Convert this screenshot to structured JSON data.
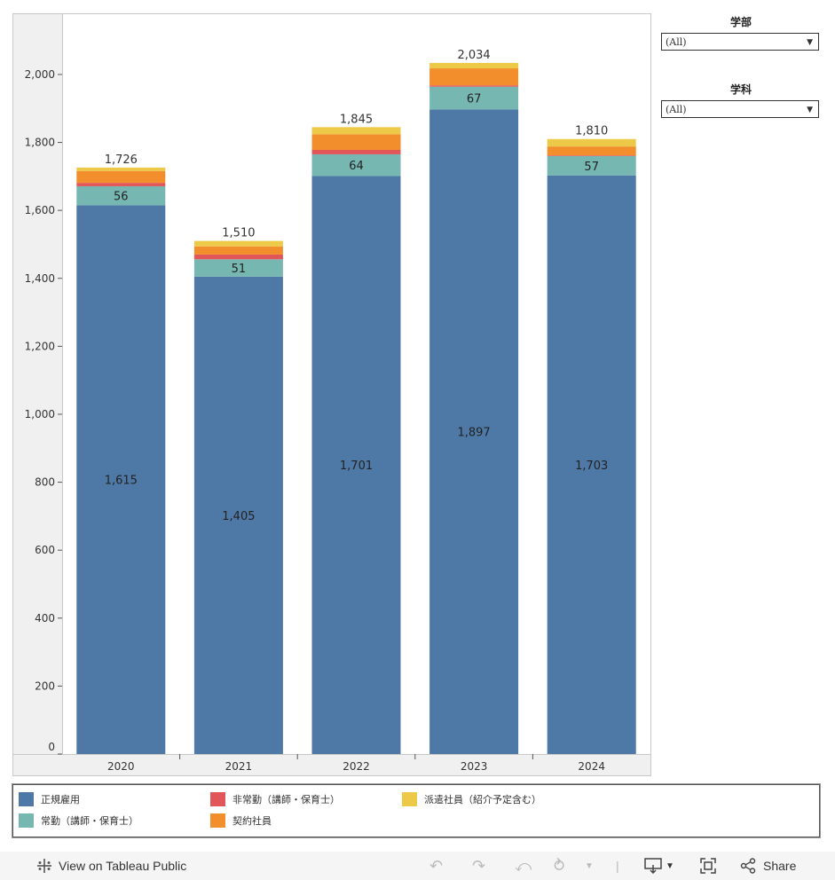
{
  "chart_data": {
    "type": "bar",
    "stacked": true,
    "categories": [
      "2020",
      "2021",
      "2022",
      "2023",
      "2024"
    ],
    "ylim": [
      0,
      2180
    ],
    "yticks": [
      0,
      200,
      400,
      600,
      800,
      1000,
      1200,
      1400,
      1600,
      1800,
      2000
    ],
    "ytick_labels": [
      "0",
      "200",
      "400",
      "600",
      "800",
      "1,000",
      "1,200",
      "1,400",
      "1,600",
      "1,800",
      "2,000"
    ],
    "series": [
      {
        "name": "正規雇用",
        "color": "#4e79a7",
        "values": [
          1615,
          1405,
          1701,
          1897,
          1703
        ],
        "labels": [
          "1,615",
          "1,405",
          "1,701",
          "1,897",
          "1,703"
        ]
      },
      {
        "name": "常勤（講師・保育士）",
        "color": "#76b7b2",
        "values": [
          56,
          51,
          64,
          67,
          57
        ],
        "labels": [
          "56",
          "51",
          "64",
          "67",
          "57"
        ]
      },
      {
        "name": "非常勤（講師・保育士）",
        "color": "#e15759",
        "values": [
          10,
          14,
          13,
          4,
          2
        ],
        "labels": null
      },
      {
        "name": "契約社員",
        "color": "#f28e2b",
        "values": [
          35,
          24,
          46,
          50,
          26
        ],
        "labels": null
      },
      {
        "name": "派遣社員（紹介予定含む）",
        "color": "#edc948",
        "values": [
          10,
          16,
          21,
          16,
          22
        ],
        "labels": null
      }
    ],
    "totals": [
      "1,726",
      "1,510",
      "1,845",
      "2,034",
      "1,810"
    ]
  },
  "filters": [
    {
      "title": "学部",
      "value": "(All)"
    },
    {
      "title": "学科",
      "value": "(All)"
    }
  ],
  "toolbar": {
    "view_label": "View on Tableau Public",
    "share_label": "Share"
  }
}
